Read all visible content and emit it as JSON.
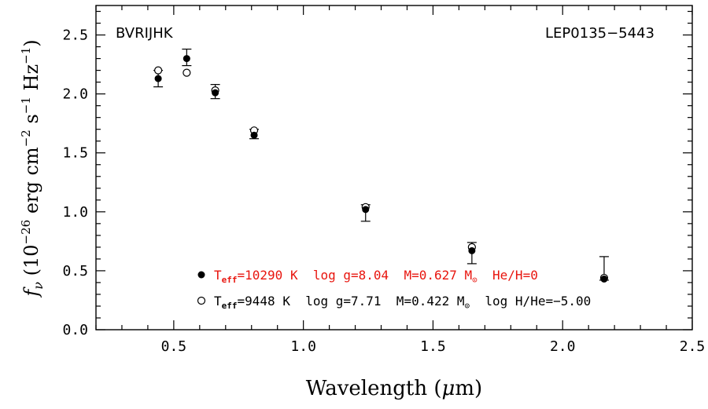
{
  "chart_data": {
    "type": "scatter",
    "xlabel_pre": "Wavelength (",
    "xlabel_mu": "μ",
    "xlabel_post": "m)",
    "ylabel_f": "f",
    "ylabel_nu": "ν",
    "ylabel_a": "(10",
    "ylabel_exp1": "−26",
    "ylabel_b": "erg cm",
    "ylabel_exp2": "−2",
    "ylabel_c": "s",
    "ylabel_exp3": "−1",
    "ylabel_d": "Hz",
    "ylabel_exp4": "−1",
    "ylabel_e": ")",
    "xlim": [
      0.2,
      2.5
    ],
    "ylim": [
      0.0,
      2.75
    ],
    "xticks": [
      0.5,
      1.0,
      1.5,
      2.0,
      2.5
    ],
    "xtick_labels": [
      "0.5",
      "1.0",
      "1.5",
      "2.0",
      "2.5"
    ],
    "yticks": [
      0.0,
      0.5,
      1.0,
      1.5,
      2.0,
      2.5
    ],
    "ytick_labels": [
      "0.0",
      "0.5",
      "1.0",
      "1.5",
      "2.0",
      "2.5"
    ],
    "x_minor_step": 0.1,
    "y_minor_step": 0.1,
    "text_top_left": "BVRIJHK",
    "text_top_right": "LEP0135−5443",
    "observed": {
      "x": [
        0.44,
        0.55,
        0.66,
        0.81,
        1.24,
        1.65,
        2.16
      ],
      "y": [
        2.13,
        2.3,
        2.02,
        1.66,
        1.02,
        0.68,
        0.44
      ],
      "yerr_low": [
        0.07,
        0.06,
        0.06,
        0.04,
        0.1,
        0.12,
        0.02
      ],
      "yerr_high": [
        0.07,
        0.08,
        0.06,
        0.04,
        0.04,
        0.06,
        0.18
      ]
    },
    "series": [
      {
        "marker": "filled-circle",
        "color": "#e8150e",
        "legend_pre": "T",
        "legend_sub": "eff",
        "legend_post": "=10290 K  log g=8.04  M=0.627 M",
        "legend_sun": "⊙",
        "legend_tail": "  He/H=0",
        "x": [
          0.44,
          0.55,
          0.66,
          0.81,
          1.24,
          1.65,
          2.16
        ],
        "y": [
          2.13,
          2.3,
          2.01,
          1.65,
          1.02,
          0.67,
          0.43
        ]
      },
      {
        "marker": "open-circle",
        "color": "#000000",
        "legend_pre": "T",
        "legend_sub": "eff",
        "legend_post": "=9448 K  log g=7.71  M=0.422 M",
        "legend_sun": "⊙",
        "legend_tail": "  log H/He=−5.00",
        "x": [
          0.44,
          0.55,
          0.66,
          0.81,
          1.24,
          1.65,
          2.16
        ],
        "y": [
          2.2,
          2.18,
          2.03,
          1.69,
          1.04,
          0.7,
          0.44
        ]
      }
    ]
  }
}
